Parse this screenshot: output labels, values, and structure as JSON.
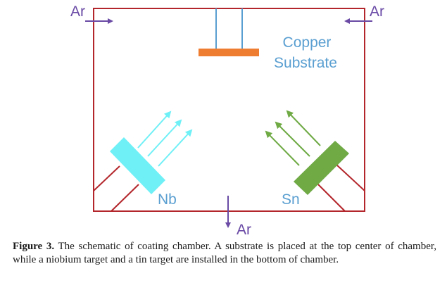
{
  "diagram": {
    "gas_labels": [
      "Ar",
      "Ar",
      "Ar"
    ],
    "substrate_label_lines": [
      "Copper",
      "Substrate"
    ],
    "targets": [
      {
        "label": "Nb",
        "color": "#6ff0f6",
        "flux_color": "#6ff0f6"
      },
      {
        "label": "Sn",
        "color": "#6faa45",
        "flux_color": "#6faa45"
      }
    ],
    "colors": {
      "chamber_wall": "#b3262b",
      "substrate": "#ef7d31",
      "substrate_holder": "#5a9fd1",
      "gas_arrow": "#6a4aa5"
    }
  },
  "caption": {
    "label": "Figure 3.",
    "text": " The schematic of coating chamber. A substrate is placed at the top center of chamber, while a niobium target and a tin target are installed in the bottom of chamber."
  }
}
